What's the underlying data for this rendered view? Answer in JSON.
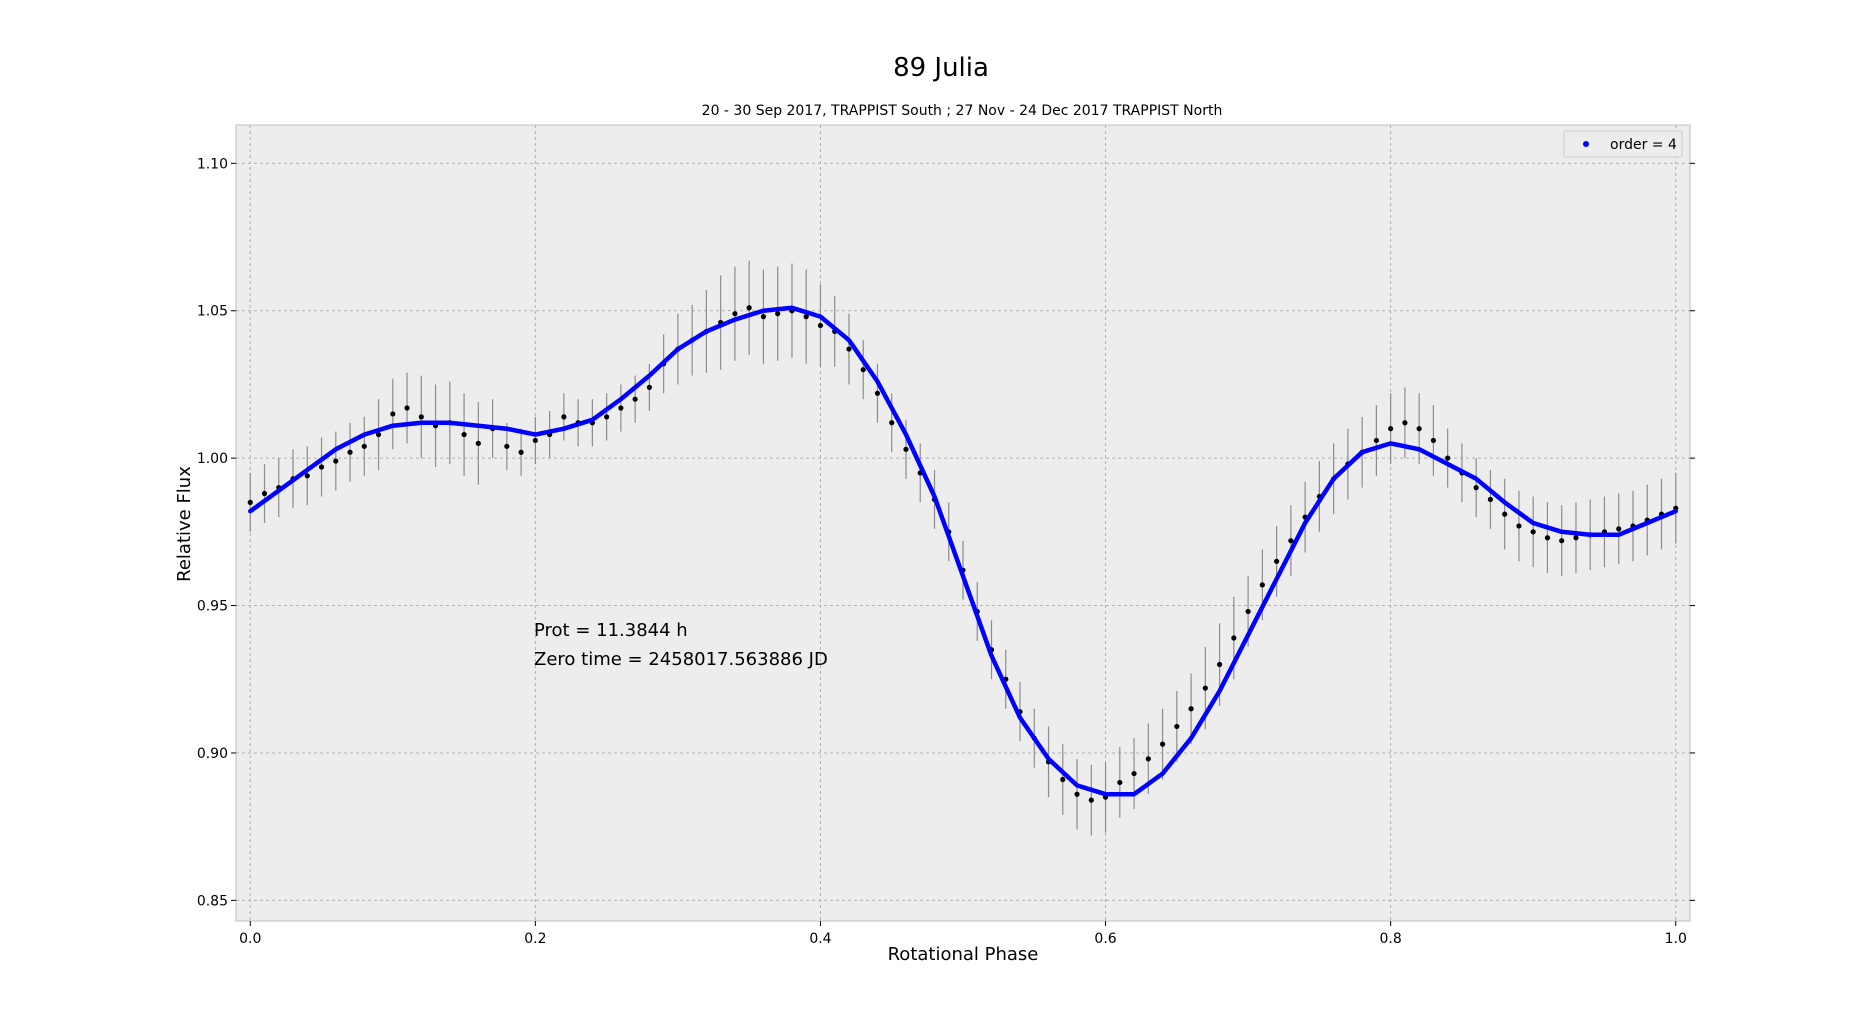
{
  "chart_data": {
    "type": "scatter",
    "title": "89 Julia",
    "subtitle": "20 - 30 Sep 2017, TRAPPIST South ; 27 Nov - 24 Dec 2017 TRAPPIST North",
    "xlabel": "Rotational Phase",
    "ylabel": "Relative   Flux",
    "xlim": [
      -0.01,
      1.01
    ],
    "ylim": [
      0.843,
      1.113
    ],
    "x_ticks": [
      "0.0",
      "0.2",
      "0.4",
      "0.6",
      "0.8",
      "1.0"
    ],
    "y_ticks": [
      "0.85",
      "0.90",
      "0.95",
      "1.00",
      "1.05",
      "1.10"
    ],
    "grid": true,
    "legend": {
      "position": "top-right",
      "entries": [
        "order = 4"
      ]
    },
    "annotations": [
      "Prot = 11.3844 h",
      "Zero time = 2458017.563886 JD"
    ],
    "colors": {
      "data_points": "#000000",
      "error_bars": "#8c8c8c",
      "fit_curve": "#0000ff",
      "plot_background": "#ededed"
    },
    "series": [
      {
        "name": "order = 4",
        "kind": "fit-curve",
        "x": [
          0.0,
          0.02,
          0.04,
          0.06,
          0.08,
          0.1,
          0.12,
          0.14,
          0.16,
          0.18,
          0.2,
          0.22,
          0.24,
          0.26,
          0.28,
          0.3,
          0.32,
          0.34,
          0.36,
          0.38,
          0.4,
          0.42,
          0.44,
          0.46,
          0.48,
          0.5,
          0.52,
          0.54,
          0.56,
          0.58,
          0.6,
          0.62,
          0.64,
          0.66,
          0.68,
          0.7,
          0.72,
          0.74,
          0.76,
          0.78,
          0.8,
          0.82,
          0.84,
          0.86,
          0.88,
          0.9,
          0.92,
          0.94,
          0.96,
          0.98,
          1.0
        ],
        "y": [
          0.982,
          0.989,
          0.996,
          1.003,
          1.008,
          1.011,
          1.012,
          1.012,
          1.011,
          1.01,
          1.008,
          1.01,
          1.013,
          1.02,
          1.028,
          1.037,
          1.043,
          1.047,
          1.05,
          1.051,
          1.048,
          1.04,
          1.026,
          1.008,
          0.987,
          0.96,
          0.933,
          0.912,
          0.898,
          0.889,
          0.886,
          0.886,
          0.893,
          0.905,
          0.921,
          0.94,
          0.959,
          0.978,
          0.993,
          1.002,
          1.005,
          1.003,
          0.998,
          0.993,
          0.985,
          0.978,
          0.975,
          0.974,
          0.974,
          0.978,
          0.982
        ]
      },
      {
        "name": "",
        "kind": "observations",
        "x": [
          0.0,
          0.01,
          0.02,
          0.03,
          0.04,
          0.05,
          0.06,
          0.07,
          0.08,
          0.09,
          0.1,
          0.11,
          0.12,
          0.13,
          0.14,
          0.15,
          0.16,
          0.17,
          0.18,
          0.19,
          0.2,
          0.21,
          0.22,
          0.23,
          0.24,
          0.25,
          0.26,
          0.27,
          0.28,
          0.29,
          0.3,
          0.31,
          0.32,
          0.33,
          0.34,
          0.35,
          0.36,
          0.37,
          0.38,
          0.39,
          0.4,
          0.41,
          0.42,
          0.43,
          0.44,
          0.45,
          0.46,
          0.47,
          0.48,
          0.49,
          0.5,
          0.51,
          0.52,
          0.53,
          0.54,
          0.55,
          0.56,
          0.57,
          0.58,
          0.59,
          0.6,
          0.61,
          0.62,
          0.63,
          0.64,
          0.65,
          0.66,
          0.67,
          0.68,
          0.69,
          0.7,
          0.71,
          0.72,
          0.73,
          0.74,
          0.75,
          0.76,
          0.77,
          0.78,
          0.79,
          0.8,
          0.81,
          0.82,
          0.83,
          0.84,
          0.85,
          0.86,
          0.87,
          0.88,
          0.89,
          0.9,
          0.91,
          0.92,
          0.93,
          0.94,
          0.95,
          0.96,
          0.97,
          0.98,
          0.99,
          1.0
        ],
        "y": [
          0.985,
          0.988,
          0.99,
          0.993,
          0.994,
          0.997,
          0.999,
          1.002,
          1.004,
          1.008,
          1.015,
          1.017,
          1.014,
          1.011,
          1.012,
          1.008,
          1.005,
          1.01,
          1.004,
          1.002,
          1.006,
          1.008,
          1.014,
          1.012,
          1.012,
          1.014,
          1.017,
          1.02,
          1.024,
          1.032,
          1.037,
          1.04,
          1.043,
          1.046,
          1.049,
          1.051,
          1.048,
          1.049,
          1.05,
          1.048,
          1.045,
          1.043,
          1.037,
          1.03,
          1.022,
          1.012,
          1.003,
          0.995,
          0.986,
          0.975,
          0.962,
          0.948,
          0.935,
          0.925,
          0.914,
          0.905,
          0.897,
          0.891,
          0.886,
          0.884,
          0.885,
          0.89,
          0.893,
          0.898,
          0.903,
          0.909,
          0.915,
          0.922,
          0.93,
          0.939,
          0.948,
          0.957,
          0.965,
          0.972,
          0.98,
          0.987,
          0.993,
          0.998,
          1.002,
          1.006,
          1.01,
          1.012,
          1.01,
          1.006,
          1.0,
          0.995,
          0.99,
          0.986,
          0.981,
          0.977,
          0.975,
          0.973,
          0.972,
          0.973,
          0.974,
          0.975,
          0.976,
          0.977,
          0.979,
          0.981,
          0.983
        ],
        "error": [
          0.01,
          0.01,
          0.01,
          0.01,
          0.01,
          0.01,
          0.01,
          0.01,
          0.01,
          0.012,
          0.012,
          0.012,
          0.014,
          0.014,
          0.014,
          0.014,
          0.014,
          0.01,
          0.008,
          0.008,
          0.008,
          0.008,
          0.008,
          0.008,
          0.008,
          0.008,
          0.008,
          0.008,
          0.008,
          0.01,
          0.012,
          0.012,
          0.014,
          0.016,
          0.016,
          0.016,
          0.016,
          0.016,
          0.016,
          0.016,
          0.014,
          0.012,
          0.012,
          0.01,
          0.01,
          0.01,
          0.01,
          0.01,
          0.01,
          0.01,
          0.01,
          0.01,
          0.01,
          0.01,
          0.01,
          0.01,
          0.012,
          0.012,
          0.012,
          0.012,
          0.012,
          0.012,
          0.012,
          0.012,
          0.012,
          0.012,
          0.012,
          0.014,
          0.014,
          0.014,
          0.012,
          0.012,
          0.012,
          0.012,
          0.012,
          0.012,
          0.012,
          0.012,
          0.012,
          0.012,
          0.012,
          0.012,
          0.012,
          0.012,
          0.01,
          0.01,
          0.01,
          0.01,
          0.012,
          0.012,
          0.012,
          0.012,
          0.012,
          0.012,
          0.012,
          0.012,
          0.012,
          0.012,
          0.012,
          0.012,
          0.012
        ]
      }
    ]
  }
}
